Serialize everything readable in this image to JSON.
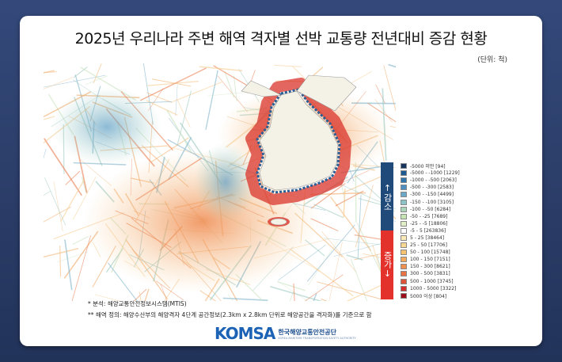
{
  "title": "2025년 우리나라 주변 해역 격자별 선박 교통량 전년대비 증감 현황",
  "unit": "(단위: 척)",
  "legend": {
    "decrease_label": "↑감소",
    "increase_label": "증가↓",
    "decrease_color": "#1f4a7a",
    "increase_color": "#e3312b",
    "items": [
      {
        "label": "-5000 미만 [94]",
        "color": "#16355e"
      },
      {
        "label": "-5000 - -1000 [1229]",
        "color": "#1e5a92"
      },
      {
        "label": "-1000 - -500 [2063]",
        "color": "#2f74ab"
      },
      {
        "label": "-500 - -300 [2583]",
        "color": "#4d8fc0"
      },
      {
        "label": "-300 - -150 [4499]",
        "color": "#6aa8c8"
      },
      {
        "label": "-150 - -100 [3105]",
        "color": "#8cc3c6"
      },
      {
        "label": "-100 - -50 [6284]",
        "color": "#a9d5b9"
      },
      {
        "label": "-50 - -25 [7689]",
        "color": "#c6e4b2"
      },
      {
        "label": "-25 - -5 [18806]",
        "color": "#e0efc4"
      },
      {
        "label": "-5 - 5 [263836]",
        "color": "#ffffff"
      },
      {
        "label": "5 - 25 [38464]",
        "color": "#fbe9b7"
      },
      {
        "label": "25 - 50 [17706]",
        "color": "#f9d991"
      },
      {
        "label": "50 - 100 [15748]",
        "color": "#f7c36f"
      },
      {
        "label": "100 - 150 [7151]",
        "color": "#f4ab5c"
      },
      {
        "label": "150 - 300 [8621]",
        "color": "#ef9050"
      },
      {
        "label": "300 - 500 [3831]",
        "color": "#e87345"
      },
      {
        "label": "500 - 1000 [3745]",
        "color": "#df553a"
      },
      {
        "label": "1000 - 5000 [3322]",
        "color": "#d42f2c"
      },
      {
        "label": "5000 이상 [804]",
        "color": "#9c0f1a"
      }
    ]
  },
  "notes": [
    "* 분석: 해양교통안전정보시스템(MTIS)",
    "** 해역 정의: 해양수산부의 해양격자 4단계 공간정보(2.3km x 2.8km 단위로 해양공간을 격자화)를 기준으로 함"
  ],
  "logo": {
    "text": "KOMSA",
    "kr": "한국해양교통안전공단",
    "en": "KOREA MARITIME TRANSPORTATION SAFETY AUTHORITY"
  }
}
